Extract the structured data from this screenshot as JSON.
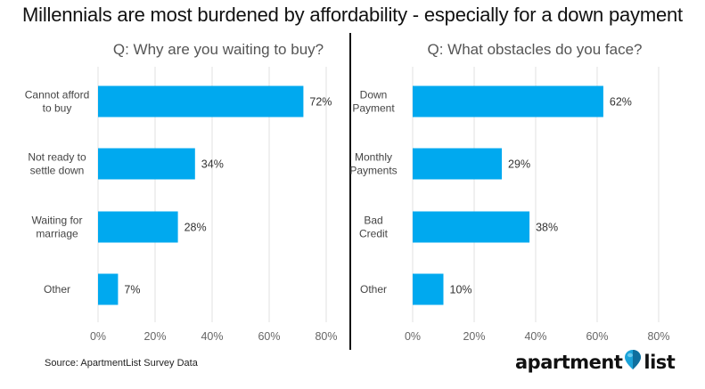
{
  "title": "Millennials are most burdened by affordability - especially for a down payment",
  "source": "Source: ApartmentList Survey Data",
  "logo": {
    "left_text": "apartment",
    "right_text": "list",
    "icon": "map-pin-icon",
    "icon_color": "#1ba3d9"
  },
  "colors": {
    "bar": "#00a9ef",
    "grid": "#e0e0e0",
    "divider": "#111111"
  },
  "chart_data": [
    {
      "type": "bar",
      "orientation": "horizontal",
      "title": "Q: Why are you waiting to buy?",
      "categories": [
        [
          "Cannot afford",
          "to buy"
        ],
        [
          "Not ready to",
          "settle down"
        ],
        [
          "Waiting for",
          "marriage"
        ],
        [
          "Other"
        ]
      ],
      "values": [
        72,
        34,
        28,
        7
      ],
      "value_labels": [
        "72%",
        "34%",
        "28%",
        "7%"
      ],
      "xlim": [
        0,
        80
      ],
      "xticks": [
        0,
        20,
        40,
        60,
        80
      ],
      "xtick_labels": [
        "0%",
        "20%",
        "40%",
        "60%",
        "80%"
      ],
      "xlabel": "",
      "ylabel": "",
      "grid": true
    },
    {
      "type": "bar",
      "orientation": "horizontal",
      "title": "Q: What obstacles do you face?",
      "categories": [
        [
          "Down",
          "Payment"
        ],
        [
          "Monthly",
          "Payments"
        ],
        [
          "Bad",
          "Credit"
        ],
        [
          "Other"
        ]
      ],
      "values": [
        62,
        29,
        38,
        10
      ],
      "value_labels": [
        "62%",
        "29%",
        "38%",
        "10%"
      ],
      "xlim": [
        0,
        80
      ],
      "xticks": [
        0,
        20,
        40,
        60,
        80
      ],
      "xtick_labels": [
        "0%",
        "20%",
        "40%",
        "60%",
        "80%"
      ],
      "xlabel": "",
      "ylabel": "",
      "grid": true
    }
  ]
}
